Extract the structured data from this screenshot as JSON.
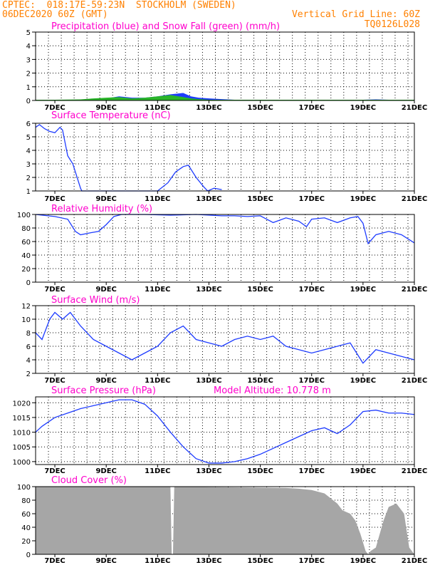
{
  "header": {
    "line1_left": "CPTEC:  018:17E-59:23N  STOCKHOLM (SWEDEN)",
    "line2_left": "06DEC2020 60Z (GMT)",
    "line2_right": "Vertical Grid Line: 60Z",
    "line3_right": "TQ0126L028"
  },
  "colors": {
    "series": "#1e3cff",
    "snow": "#2ab52a",
    "cloud": "#a6a6a6",
    "title": "#ff00cc",
    "header": "#ff8000"
  },
  "x_days": [
    "7DEC",
    "9DEC",
    "11DEC",
    "13DEC",
    "15DEC",
    "17DEC",
    "19DEC",
    "21DEC"
  ],
  "chart_data": [
    {
      "type": "area",
      "title": "Precipitation (blue) and Snow Fall (green) (mm/h)",
      "ylim": [
        0,
        5
      ],
      "yticks": [
        0,
        1,
        2,
        3,
        4,
        5
      ],
      "xlim": [
        6.25,
        21
      ],
      "series": [
        {
          "name": "Precipitation",
          "color": "blue",
          "x": [
            6.25,
            8.5,
            9.0,
            9.5,
            10.0,
            10.5,
            11.0,
            11.5,
            12.0,
            12.3,
            12.6,
            13.0,
            13.5,
            14.0,
            15.0,
            16.0,
            17.0,
            18.0,
            19.0,
            19.5,
            20.0,
            21.0
          ],
          "values": [
            0,
            0,
            0.15,
            0.3,
            0.2,
            0.2,
            0.3,
            0.45,
            0.55,
            0.3,
            0.2,
            0.15,
            0.1,
            0.05,
            0.05,
            0.05,
            0.05,
            0.05,
            0.05,
            0.08,
            0.05,
            0
          ]
        },
        {
          "name": "Snow Fall",
          "color": "green",
          "x": [
            6.25,
            7.0,
            8.0,
            8.5,
            9.0,
            9.5,
            10.0,
            10.5,
            11.0,
            11.5,
            12.0,
            12.3,
            12.6,
            13.0,
            14.0,
            15.0,
            16.0,
            17.0,
            18.0,
            19.0,
            20.0,
            21.0
          ],
          "values": [
            0.05,
            0.05,
            0.08,
            0.15,
            0.2,
            0.25,
            0.15,
            0.2,
            0.3,
            0.4,
            0.25,
            0.15,
            0.1,
            0.05,
            0.05,
            0.05,
            0.05,
            0.05,
            0.05,
            0.05,
            0.05,
            0.05
          ]
        }
      ]
    },
    {
      "type": "line",
      "title": "Surface Temperature (nC)",
      "ylim": [
        1,
        6
      ],
      "yticks": [
        1,
        2,
        3,
        4,
        5,
        6
      ],
      "xlim": [
        6.25,
        21
      ],
      "series": [
        {
          "color": "blue",
          "x": [
            6.25,
            6.4,
            6.6,
            6.8,
            7.0,
            7.2,
            7.3,
            7.5,
            7.7,
            8.0,
            8.05,
            11.0,
            11.4,
            11.7,
            12.0,
            12.2,
            12.5,
            12.8,
            12.95,
            13.2,
            13.5
          ],
          "values": [
            5.7,
            5.9,
            5.6,
            5.4,
            5.3,
            5.7,
            5.5,
            3.6,
            3.0,
            1.2,
            1.0,
            1.0,
            1.6,
            2.4,
            2.8,
            2.9,
            2.0,
            1.3,
            1.0,
            1.2,
            1.1
          ]
        }
      ]
    },
    {
      "type": "line",
      "title": "Relative Humidity (%)",
      "ylim": [
        0,
        100
      ],
      "yticks": [
        0,
        20,
        40,
        60,
        80,
        100
      ],
      "xlim": [
        6.25,
        21
      ],
      "series": [
        {
          "color": "blue",
          "x": [
            6.25,
            7.0,
            7.5,
            7.8,
            8.0,
            8.4,
            8.7,
            9.0,
            9.3,
            9.6,
            10.5,
            11.5,
            12.5,
            13.5,
            14.0,
            14.5,
            15.0,
            15.5,
            16.0,
            16.5,
            16.8,
            17.0,
            17.5,
            18.0,
            18.5,
            18.8,
            19.0,
            19.2,
            19.5,
            20.0,
            20.5,
            21.0
          ],
          "values": [
            100,
            97,
            93,
            75,
            70,
            73,
            75,
            85,
            97,
            100,
            100,
            99,
            100,
            98,
            98,
            97,
            98,
            88,
            95,
            90,
            82,
            93,
            95,
            88,
            95,
            97,
            87,
            57,
            70,
            75,
            70,
            58
          ]
        }
      ]
    },
    {
      "type": "line",
      "title": "Surface Wind (m/s)",
      "ylim": [
        2,
        12
      ],
      "yticks": [
        2,
        4,
        6,
        8,
        10,
        12
      ],
      "xlim": [
        6.25,
        21
      ],
      "series": [
        {
          "color": "blue",
          "x": [
            6.25,
            6.5,
            6.8,
            7.0,
            7.3,
            7.6,
            8.0,
            8.5,
            9.0,
            9.5,
            10.0,
            10.5,
            11.0,
            11.5,
            12.0,
            12.5,
            13.0,
            13.5,
            14.0,
            14.5,
            15.0,
            15.5,
            16.0,
            16.5,
            17.0,
            17.5,
            18.0,
            18.5,
            19.0,
            19.5,
            20.0,
            20.5,
            21.0
          ],
          "values": [
            8,
            7,
            10,
            11,
            10,
            11,
            9,
            7,
            6,
            5,
            4,
            5,
            6,
            8,
            9,
            7,
            6.5,
            6,
            7,
            7.5,
            7,
            7.5,
            6,
            5.5,
            5,
            5.5,
            6,
            6.5,
            3.5,
            5.5,
            5,
            4.5,
            4
          ]
        }
      ]
    },
    {
      "type": "line",
      "title": "Surface Pressure (hPa)",
      "annotation": "Model Altitude: 10.778 m",
      "ylim": [
        999,
        1022
      ],
      "yticks": [
        1000,
        1005,
        1010,
        1015,
        1020
      ],
      "xlim": [
        6.25,
        21
      ],
      "series": [
        {
          "color": "blue",
          "x": [
            6.25,
            6.5,
            7.0,
            7.5,
            8.0,
            8.5,
            9.0,
            9.5,
            10.0,
            10.5,
            11.0,
            11.5,
            12.0,
            12.5,
            13.0,
            13.5,
            14.0,
            14.5,
            15.0,
            15.5,
            16.0,
            16.5,
            17.0,
            17.5,
            18.0,
            18.5,
            19.0,
            19.5,
            20.0,
            20.5,
            21.0
          ],
          "values": [
            1010,
            1012,
            1015,
            1016.5,
            1018,
            1019,
            1020,
            1021,
            1021,
            1019.5,
            1015.5,
            1010,
            1005,
            1001,
            999.5,
            999.5,
            1000,
            1001,
            1002.5,
            1004.5,
            1006.5,
            1008.5,
            1010.5,
            1011.5,
            1009.5,
            1012.5,
            1017,
            1017.5,
            1016.5,
            1016.5,
            1016
          ]
        }
      ]
    },
    {
      "type": "area",
      "title": "Cloud Cover (%)",
      "ylim": [
        0,
        100
      ],
      "yticks": [
        0,
        20,
        40,
        60,
        80,
        100
      ],
      "xlim": [
        6.25,
        21
      ],
      "series": [
        {
          "color": "gray",
          "x": [
            6.25,
            11.5,
            11.55,
            11.6,
            11.65,
            16.0,
            16.5,
            17.0,
            17.5,
            18.0,
            18.2,
            18.5,
            18.7,
            18.9,
            19.1,
            19.2,
            19.3,
            19.5,
            19.8,
            20.0,
            20.3,
            20.6,
            20.8,
            21.0
          ],
          "values": [
            100,
            100,
            0,
            0,
            100,
            98,
            97,
            95,
            90,
            75,
            65,
            60,
            50,
            30,
            5,
            0,
            5,
            10,
            50,
            70,
            75,
            60,
            10,
            0
          ]
        }
      ]
    }
  ]
}
